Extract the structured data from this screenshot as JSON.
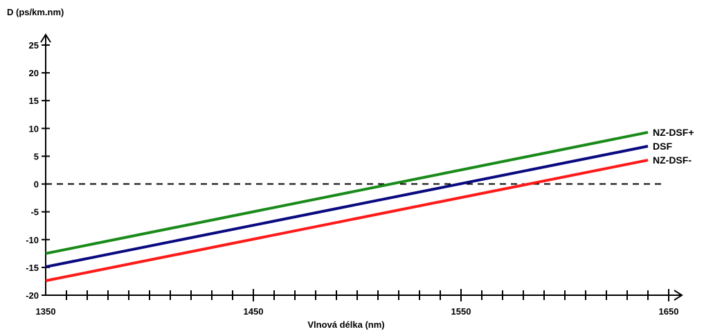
{
  "chart_data": {
    "type": "line",
    "title": "",
    "ylabel": "D (ps/km.nm)",
    "xlabel": "Vlnová délka (nm)",
    "xlim": [
      1350,
      1650
    ],
    "ylim": [
      -20,
      27
    ],
    "x_tick_labels": [
      {
        "value": 1350,
        "label": "1350"
      },
      {
        "value": 1450,
        "label": "1450"
      },
      {
        "value": 1550,
        "label": "1550"
      },
      {
        "value": 1650,
        "label": "1650"
      }
    ],
    "x_minor_ticks": [
      1360,
      1370,
      1380,
      1390,
      1400,
      1410,
      1420,
      1430,
      1440,
      1460,
      1470,
      1480,
      1490,
      1500,
      1510,
      1520,
      1530,
      1540,
      1560,
      1570,
      1580,
      1590,
      1600,
      1610,
      1620,
      1630,
      1640
    ],
    "y_ticks": [
      {
        "value": 25,
        "label": "25"
      },
      {
        "value": 20,
        "label": "20"
      },
      {
        "value": 15,
        "label": "15"
      },
      {
        "value": 10,
        "label": "10"
      },
      {
        "value": 5,
        "label": "5"
      },
      {
        "value": 0,
        "label": "0"
      },
      {
        "value": -5,
        "label": "-5"
      },
      {
        "value": -10,
        "label": "-10"
      },
      {
        "value": -15,
        "label": "-15"
      },
      {
        "value": -20,
        "label": "-20"
      }
    ],
    "reference_line": {
      "y": 0,
      "x_start": 1350,
      "x_end": 1647,
      "style": "dashed",
      "color": "#000000"
    },
    "series": [
      {
        "name": "NZ-DSF+",
        "color": "#1a8a1a",
        "x": [
          1350,
          1640
        ],
        "y": [
          -12.5,
          9.3
        ]
      },
      {
        "name": "DSF",
        "color": "#0a0a80",
        "x": [
          1350,
          1640
        ],
        "y": [
          -14.9,
          6.8
        ]
      },
      {
        "name": "NZ-DSF-",
        "color": "#ff1a1a",
        "x": [
          1350,
          1640
        ],
        "y": [
          -17.4,
          4.3
        ]
      }
    ],
    "grid": false,
    "legend": "right end of lines"
  }
}
